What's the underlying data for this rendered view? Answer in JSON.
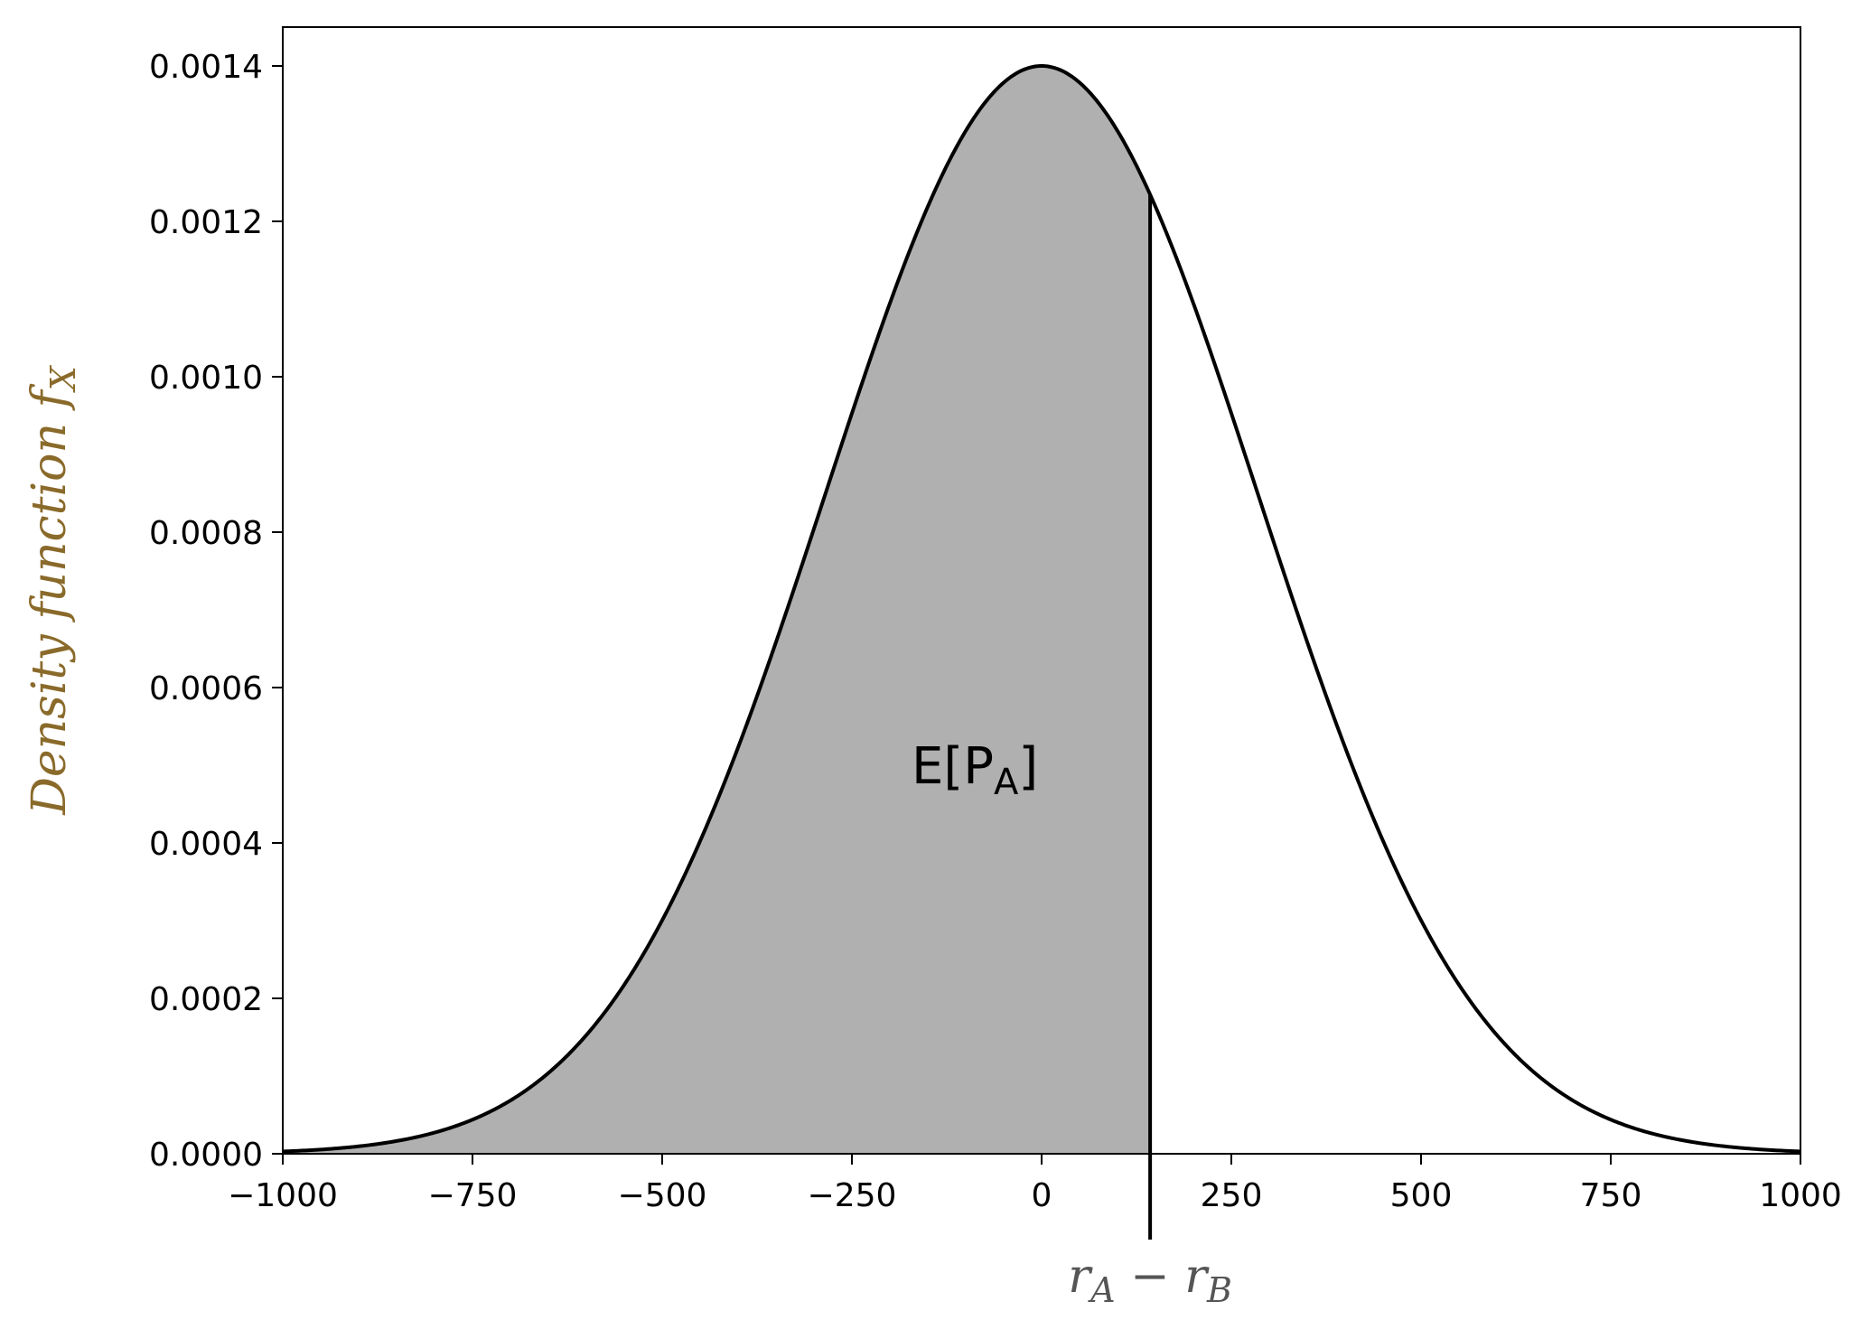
{
  "chart_data": {
    "type": "area",
    "xlabel": "r_A − r_B",
    "ylabel": "Density function f_X",
    "xlim": [
      -1000,
      1000
    ],
    "ylim": [
      0,
      0.00145
    ],
    "x_ticks": [
      -1000,
      -750,
      -500,
      -250,
      0,
      250,
      500,
      750,
      1000
    ],
    "x_tick_labels": [
      "−1000",
      "−750",
      "−500",
      "−250",
      "0",
      "250",
      "500",
      "750",
      "1000"
    ],
    "y_ticks": [
      0,
      0.0002,
      0.0004,
      0.0006,
      0.0008,
      0.001,
      0.0012,
      0.0014
    ],
    "y_tick_labels": [
      "0.0000",
      "0.0002",
      "0.0004",
      "0.0006",
      "0.0008",
      "0.0010",
      "0.0012",
      "0.0014"
    ],
    "distribution": {
      "name": "normal",
      "mean": 0,
      "std": 285,
      "peak_density": 0.0014
    },
    "shaded_region": {
      "from": -1000,
      "to": 143,
      "fill_color": "#b0b0b0"
    },
    "marker_line_x": 143,
    "annotation": {
      "text": "E[P",
      "subscript": "A",
      "suffix": "]",
      "x": -100,
      "y": 0.0005
    },
    "grid": false,
    "ylabel_color": "#8a6a2a",
    "xlabel_color": "#555555"
  }
}
